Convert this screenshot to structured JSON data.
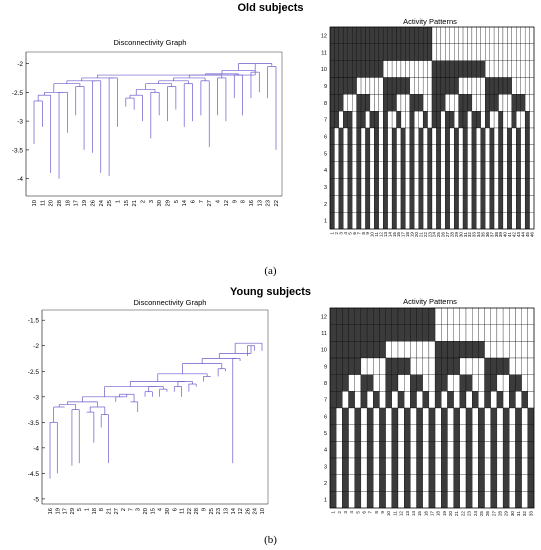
{
  "panels": [
    {
      "section_title": "Old subjects",
      "sub_label": "(a)",
      "dendrogram": {
        "title": "Disconnectivity Graph",
        "y_ticks": [
          "-2",
          "-2.5",
          "-3",
          "-3.5",
          "-4"
        ],
        "x_labels": [
          "10",
          "11",
          "20",
          "28",
          "18",
          "17",
          "19",
          "26",
          "24",
          "25",
          "1",
          "15",
          "21",
          "2",
          "3",
          "30",
          "29",
          "5",
          "14",
          "6",
          "7",
          "27",
          "4",
          "12",
          "9",
          "8",
          "16",
          "13",
          "23",
          "22"
        ]
      },
      "activity": {
        "title": "Activity Patterns",
        "rows": [
          "1",
          "2",
          "3",
          "4",
          "5",
          "6",
          "7",
          "8",
          "9",
          "10",
          "11",
          "12"
        ],
        "cols": [
          "1",
          "2",
          "3",
          "4",
          "5",
          "6",
          "7",
          "8",
          "9",
          "10",
          "11",
          "12",
          "13",
          "14",
          "15",
          "16",
          "17",
          "18",
          "19",
          "20",
          "21",
          "22",
          "23",
          "24",
          "25",
          "26",
          "27",
          "28",
          "29",
          "30",
          "31",
          "32",
          "33",
          "34",
          "35",
          "36",
          "37",
          "38",
          "39",
          "40",
          "41",
          "42",
          "43",
          "44",
          "45",
          "46"
        ]
      }
    },
    {
      "section_title": "Young subjects",
      "sub_label": "(b)",
      "dendrogram": {
        "title": "Disconnectivity Graph",
        "y_ticks": [
          "-1.5",
          "-2",
          "-2.5",
          "-3",
          "-3.5",
          "-4",
          "-4.5",
          "-5"
        ],
        "x_labels": [
          "16",
          "19",
          "17",
          "29",
          "5",
          "1",
          "18",
          "8",
          "21",
          "27",
          "2",
          "7",
          "3",
          "20",
          "15",
          "4",
          "30",
          "6",
          "11",
          "22",
          "28",
          "9",
          "25",
          "23",
          "13",
          "14",
          "12",
          "26",
          "24",
          "10"
        ]
      },
      "activity": {
        "title": "Activity Patterns",
        "rows": [
          "1",
          "2",
          "3",
          "4",
          "5",
          "6",
          "7",
          "8",
          "9",
          "10",
          "11",
          "12"
        ],
        "cols": [
          "1",
          "2",
          "3",
          "4",
          "5",
          "6",
          "7",
          "8",
          "9",
          "10",
          "11",
          "12",
          "13",
          "14",
          "15",
          "16",
          "17",
          "18",
          "19",
          "20",
          "21",
          "22",
          "23",
          "24",
          "25",
          "26",
          "27",
          "28",
          "29",
          "30",
          "31",
          "32",
          "33"
        ]
      }
    }
  ],
  "colors": {
    "dendro_line": "#6a5acd",
    "cell_dark": "#3b3b3b",
    "grid": "#000000"
  }
}
